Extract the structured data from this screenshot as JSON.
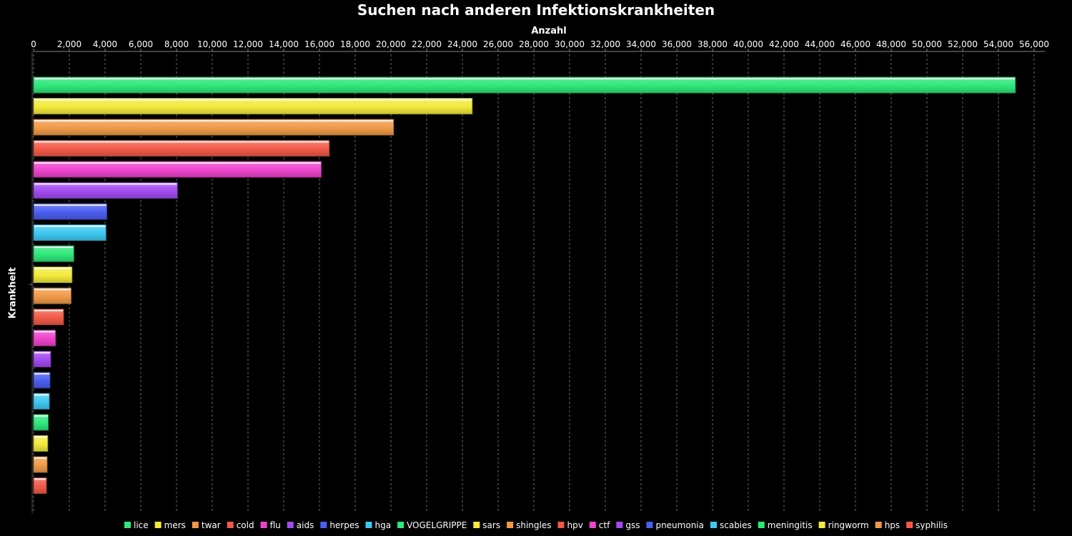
{
  "chart_data": {
    "type": "bar",
    "orientation": "horizontal",
    "title": "Suchen nach anderen Infektionskrankheiten",
    "xlabel": "Anzahl",
    "ylabel": "Krankheit",
    "xlim": [
      0,
      56600
    ],
    "x_ticks": [
      0,
      2000,
      4000,
      6000,
      8000,
      10000,
      12000,
      14000,
      16000,
      18000,
      20000,
      22000,
      24000,
      26000,
      28000,
      30000,
      32000,
      34000,
      36000,
      38000,
      40000,
      42000,
      44000,
      46000,
      48000,
      50000,
      52000,
      54000,
      56000
    ],
    "x_tick_labels": [
      "0",
      "2,000",
      "4,000",
      "6,000",
      "8,000",
      "10,000",
      "12,000",
      "14,000",
      "16,000",
      "18,000",
      "20,000",
      "22,000",
      "24,000",
      "26,000",
      "28,000",
      "30,000",
      "32,000",
      "34,000",
      "36,000",
      "38,000",
      "40,000",
      "42,000",
      "44,000",
      "46,000",
      "48,000",
      "50,000",
      "52,000",
      "54,000",
      "56,000"
    ],
    "x_axis_position": "top",
    "grid": true,
    "legend_position": "bottom",
    "categories": [
      "lice",
      "mers",
      "twar",
      "cold",
      "flu",
      "aids",
      "herpes",
      "hga",
      "VOGELGRIPPE",
      "sars",
      "shingles",
      "hpv",
      "ctf",
      "gss",
      "pneumonia",
      "scabies",
      "meningitis",
      "ringworm",
      "hps",
      "syphilis"
    ],
    "values": [
      54950,
      24550,
      20150,
      16550,
      16100,
      8050,
      4100,
      4050,
      2250,
      2150,
      2100,
      1680,
      1230,
      960,
      920,
      880,
      820,
      790,
      760,
      720
    ],
    "colors": [
      "#2ee87a",
      "#f2ea3c",
      "#f09a48",
      "#f25a48",
      "#ee44cc",
      "#a24af0",
      "#4a5ef0",
      "#3ec8f2",
      "#2ee87a",
      "#f2ea3c",
      "#f09a48",
      "#f25a48",
      "#ee44cc",
      "#a24af0",
      "#4a5ef0",
      "#3ec8f2",
      "#2ee87a",
      "#f2ea3c",
      "#f09a48",
      "#f25a48"
    ]
  }
}
